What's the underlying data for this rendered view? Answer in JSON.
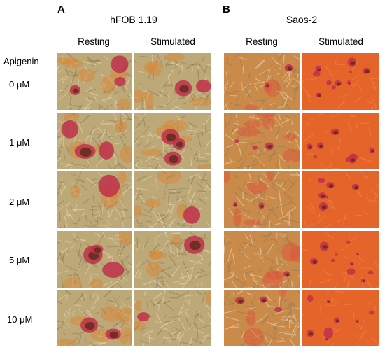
{
  "panels": [
    {
      "letter": "A",
      "title": "hFOB 1.19",
      "columns": [
        "Resting",
        "Stimulated"
      ]
    },
    {
      "letter": "B",
      "title": "Saos-2",
      "columns": [
        "Resting",
        "Stimulated"
      ]
    }
  ],
  "treatment_label": "Apigenin",
  "doses": [
    "0 μM",
    "1 μM",
    "2 μM",
    "5 μM",
    "10 μM"
  ],
  "colors": {
    "hfob_background": "#bda878",
    "saos_resting_background": "#c98a4a",
    "saos_stimulated_background": "#e4642a",
    "nodule": "#c0304a",
    "nodule_dark": "#5a2a1a",
    "cell": "#e8d8b0"
  }
}
